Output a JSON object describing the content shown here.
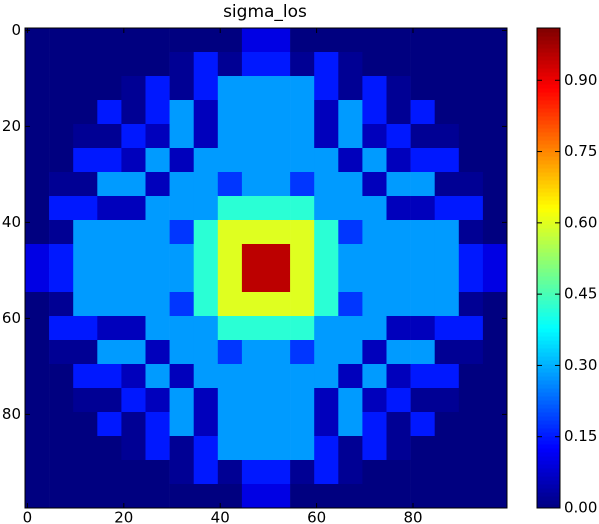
{
  "chart_data": {
    "type": "heatmap",
    "title": "sigma_los",
    "colormap": "jet",
    "x": [
      2,
      7,
      12,
      17,
      22,
      27,
      32,
      37,
      42,
      47,
      52,
      57,
      62,
      67,
      72,
      77,
      82,
      87,
      92,
      97
    ],
    "y": [
      2,
      7,
      12,
      17,
      22,
      27,
      32,
      37,
      42,
      47,
      52,
      57,
      62,
      67,
      72,
      77,
      82,
      87,
      92,
      97
    ],
    "xlim": [
      -0.5,
      99.5
    ],
    "ylim": [
      99.5,
      -0.5
    ],
    "xticks": [
      0,
      20,
      40,
      60,
      80
    ],
    "yticks": [
      0,
      20,
      40,
      60,
      80
    ],
    "z": [
      [
        0,
        0,
        0,
        0,
        0,
        0,
        0,
        0,
        0,
        0.1,
        0.1,
        0,
        0,
        0,
        0,
        0,
        0,
        0,
        0,
        0
      ],
      [
        0,
        0,
        0,
        0,
        0,
        0,
        0.02,
        0.15,
        0.02,
        0.15,
        0.15,
        0.02,
        0.15,
        0.02,
        0,
        0,
        0,
        0,
        0,
        0
      ],
      [
        0,
        0,
        0,
        0,
        0.02,
        0.15,
        0.02,
        0.15,
        0.28,
        0.28,
        0.28,
        0.28,
        0.15,
        0.02,
        0.15,
        0.02,
        0,
        0,
        0,
        0
      ],
      [
        0,
        0,
        0,
        0.15,
        0.02,
        0.15,
        0.28,
        0.06,
        0.28,
        0.28,
        0.28,
        0.28,
        0.06,
        0.28,
        0.15,
        0.02,
        0.15,
        0,
        0,
        0
      ],
      [
        0,
        0,
        0.02,
        0.02,
        0.15,
        0.06,
        0.28,
        0.06,
        0.28,
        0.28,
        0.28,
        0.28,
        0.06,
        0.28,
        0.06,
        0.15,
        0.02,
        0.02,
        0,
        0
      ],
      [
        0,
        0,
        0.15,
        0.15,
        0.06,
        0.28,
        0.06,
        0.28,
        0.28,
        0.28,
        0.28,
        0.28,
        0.28,
        0.06,
        0.28,
        0.06,
        0.15,
        0.15,
        0,
        0
      ],
      [
        0,
        0.02,
        0.02,
        0.28,
        0.28,
        0.06,
        0.28,
        0.28,
        0.18,
        0.28,
        0.28,
        0.18,
        0.28,
        0.28,
        0.06,
        0.28,
        0.28,
        0.02,
        0.02,
        0
      ],
      [
        0,
        0.15,
        0.15,
        0.06,
        0.06,
        0.28,
        0.28,
        0.28,
        0.42,
        0.42,
        0.42,
        0.42,
        0.28,
        0.28,
        0.28,
        0.06,
        0.06,
        0.15,
        0.15,
        0
      ],
      [
        0,
        0.02,
        0.28,
        0.28,
        0.28,
        0.28,
        0.18,
        0.42,
        0.6,
        0.6,
        0.6,
        0.6,
        0.42,
        0.18,
        0.28,
        0.28,
        0.28,
        0.28,
        0.02,
        0
      ],
      [
        0.1,
        0.15,
        0.28,
        0.28,
        0.28,
        0.28,
        0.28,
        0.42,
        0.6,
        0.95,
        0.95,
        0.6,
        0.42,
        0.28,
        0.28,
        0.28,
        0.28,
        0.28,
        0.15,
        0.1
      ],
      [
        0.1,
        0.15,
        0.28,
        0.28,
        0.28,
        0.28,
        0.28,
        0.42,
        0.6,
        0.95,
        0.95,
        0.6,
        0.42,
        0.28,
        0.28,
        0.28,
        0.28,
        0.28,
        0.15,
        0.1
      ],
      [
        0,
        0.02,
        0.28,
        0.28,
        0.28,
        0.28,
        0.18,
        0.42,
        0.6,
        0.6,
        0.6,
        0.6,
        0.42,
        0.18,
        0.28,
        0.28,
        0.28,
        0.28,
        0.02,
        0
      ],
      [
        0,
        0.15,
        0.15,
        0.06,
        0.06,
        0.28,
        0.28,
        0.28,
        0.42,
        0.42,
        0.42,
        0.42,
        0.28,
        0.28,
        0.28,
        0.06,
        0.06,
        0.15,
        0.15,
        0
      ],
      [
        0,
        0.02,
        0.02,
        0.28,
        0.28,
        0.06,
        0.28,
        0.28,
        0.18,
        0.28,
        0.28,
        0.18,
        0.28,
        0.28,
        0.06,
        0.28,
        0.28,
        0.02,
        0.02,
        0
      ],
      [
        0,
        0,
        0.15,
        0.15,
        0.06,
        0.28,
        0.06,
        0.28,
        0.28,
        0.28,
        0.28,
        0.28,
        0.28,
        0.06,
        0.28,
        0.06,
        0.15,
        0.15,
        0,
        0
      ],
      [
        0,
        0,
        0.02,
        0.02,
        0.15,
        0.06,
        0.28,
        0.06,
        0.28,
        0.28,
        0.28,
        0.28,
        0.06,
        0.28,
        0.06,
        0.15,
        0.02,
        0.02,
        0,
        0
      ],
      [
        0,
        0,
        0,
        0.15,
        0.02,
        0.15,
        0.28,
        0.06,
        0.28,
        0.28,
        0.28,
        0.28,
        0.06,
        0.28,
        0.15,
        0.02,
        0.15,
        0,
        0,
        0
      ],
      [
        0,
        0,
        0,
        0,
        0.02,
        0.15,
        0.02,
        0.15,
        0.28,
        0.28,
        0.28,
        0.28,
        0.15,
        0.02,
        0.15,
        0.02,
        0,
        0,
        0,
        0
      ],
      [
        0,
        0,
        0,
        0,
        0,
        0,
        0.02,
        0.15,
        0.02,
        0.15,
        0.15,
        0.02,
        0.15,
        0.02,
        0,
        0,
        0,
        0,
        0,
        0
      ],
      [
        0,
        0,
        0,
        0,
        0,
        0,
        0,
        0,
        0,
        0.1,
        0.1,
        0,
        0,
        0,
        0,
        0,
        0,
        0,
        0,
        0
      ]
    ],
    "colorbar": {
      "clim": [
        0,
        1.01
      ],
      "ticks": [
        {
          "value": 0,
          "label": "0.00"
        },
        0.15,
        {
          "value": 0.3,
          "label": "0.30"
        },
        0.45,
        {
          "value": 0.6,
          "label": "0.60"
        },
        0.75,
        {
          "value": 0.9,
          "label": "0.90"
        }
      ]
    }
  }
}
